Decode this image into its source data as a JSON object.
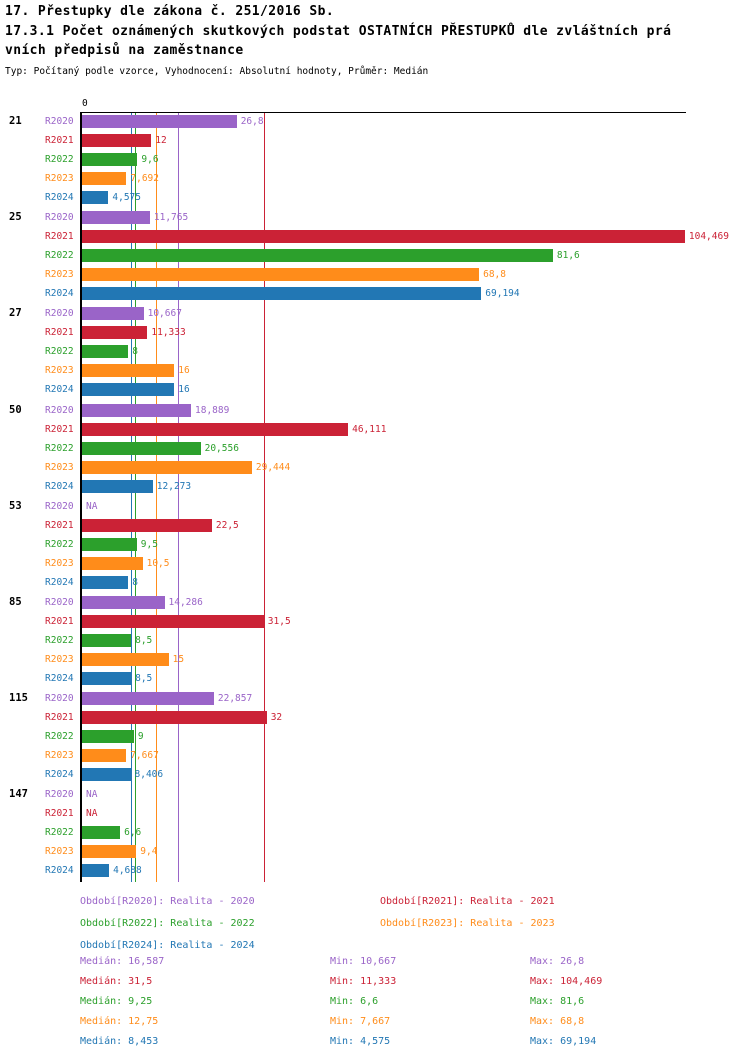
{
  "header": {
    "title": "17. Přestupky dle zákona č. 251/2016 Sb.",
    "subtitle_line1": "17.3.1 Počet oznámených skutkových podstat OSTATNÍCH PŘESTUPKŮ dle zvláštních prá",
    "subtitle_line2": "vních předpisů na zaměstnance",
    "meta": "Typ: Počítaný podle vzorce, Vyhodnocení: Absolutní hodnoty, Průměr: Medián"
  },
  "chart_data": {
    "type": "bar",
    "orientation": "horizontal",
    "value_axis": {
      "zero_label": "0",
      "xlim": [
        0,
        105
      ]
    },
    "series_order": [
      "R2020",
      "R2021",
      "R2022",
      "R2023",
      "R2024"
    ],
    "series_colors": {
      "R2020": "#9a64c8",
      "R2021": "#cb2236",
      "R2022": "#2ca02c",
      "R2023": "#ff8c1a",
      "R2024": "#2277b4"
    },
    "median_lines": [
      {
        "series": "R2020",
        "value": 16.587
      },
      {
        "series": "R2021",
        "value": 31.5
      },
      {
        "series": "R2022",
        "value": 9.25
      },
      {
        "series": "R2023",
        "value": 12.75
      },
      {
        "series": "R2024",
        "value": 8.453
      }
    ],
    "groups": [
      {
        "label": "21",
        "bars": [
          {
            "series": "R2020",
            "value": 26.8,
            "label": "26,8"
          },
          {
            "series": "R2021",
            "value": 12,
            "label": "12"
          },
          {
            "series": "R2022",
            "value": 9.6,
            "label": "9,6"
          },
          {
            "series": "R2023",
            "value": 7.692,
            "label": "7,692"
          },
          {
            "series": "R2024",
            "value": 4.575,
            "label": "4,575"
          }
        ]
      },
      {
        "label": "25",
        "bars": [
          {
            "series": "R2020",
            "value": 11.765,
            "label": "11,765"
          },
          {
            "series": "R2021",
            "value": 104.469,
            "label": "104,469"
          },
          {
            "series": "R2022",
            "value": 81.6,
            "label": "81,6"
          },
          {
            "series": "R2023",
            "value": 68.8,
            "label": "68,8"
          },
          {
            "series": "R2024",
            "value": 69.194,
            "label": "69,194"
          }
        ]
      },
      {
        "label": "27",
        "bars": [
          {
            "series": "R2020",
            "value": 10.667,
            "label": "10,667"
          },
          {
            "series": "R2021",
            "value": 11.333,
            "label": "11,333"
          },
          {
            "series": "R2022",
            "value": 8,
            "label": "8"
          },
          {
            "series": "R2023",
            "value": 16,
            "label": "16"
          },
          {
            "series": "R2024",
            "value": 16,
            "label": "16"
          }
        ]
      },
      {
        "label": "50",
        "bars": [
          {
            "series": "R2020",
            "value": 18.889,
            "label": "18,889"
          },
          {
            "series": "R2021",
            "value": 46.111,
            "label": "46,111"
          },
          {
            "series": "R2022",
            "value": 20.556,
            "label": "20,556"
          },
          {
            "series": "R2023",
            "value": 29.444,
            "label": "29,444"
          },
          {
            "series": "R2024",
            "value": 12.273,
            "label": "12,273"
          }
        ]
      },
      {
        "label": "53",
        "bars": [
          {
            "series": "R2020",
            "value": null,
            "label": "NA"
          },
          {
            "series": "R2021",
            "value": 22.5,
            "label": "22,5"
          },
          {
            "series": "R2022",
            "value": 9.5,
            "label": "9,5"
          },
          {
            "series": "R2023",
            "value": 10.5,
            "label": "10,5"
          },
          {
            "series": "R2024",
            "value": 8,
            "label": "8"
          }
        ]
      },
      {
        "label": "85",
        "bars": [
          {
            "series": "R2020",
            "value": 14.286,
            "label": "14,286"
          },
          {
            "series": "R2021",
            "value": 31.5,
            "label": "31,5"
          },
          {
            "series": "R2022",
            "value": 8.5,
            "label": "8,5"
          },
          {
            "series": "R2023",
            "value": 15,
            "label": "15"
          },
          {
            "series": "R2024",
            "value": 8.5,
            "label": "8,5"
          }
        ]
      },
      {
        "label": "115",
        "bars": [
          {
            "series": "R2020",
            "value": 22.857,
            "label": "22,857"
          },
          {
            "series": "R2021",
            "value": 32,
            "label": "32"
          },
          {
            "series": "R2022",
            "value": 9,
            "label": "9"
          },
          {
            "series": "R2023",
            "value": 7.667,
            "label": "7,667"
          },
          {
            "series": "R2024",
            "value": 8.406,
            "label": "8,406"
          }
        ]
      },
      {
        "label": "147",
        "bars": [
          {
            "series": "R2020",
            "value": null,
            "label": "NA"
          },
          {
            "series": "R2021",
            "value": null,
            "label": "NA"
          },
          {
            "series": "R2022",
            "value": 6.6,
            "label": "6,6"
          },
          {
            "series": "R2023",
            "value": 9.4,
            "label": "9,4"
          },
          {
            "series": "R2024",
            "value": 4.688,
            "label": "4,688"
          }
        ]
      }
    ]
  },
  "legend": {
    "items": [
      {
        "series": "R2020",
        "text": "Období[R2020]: Realita - 2020"
      },
      {
        "series": "R2021",
        "text": "Období[R2021]: Realita - 2021"
      },
      {
        "series": "R2022",
        "text": "Období[R2022]: Realita - 2022"
      },
      {
        "series": "R2023",
        "text": "Období[R2023]: Realita - 2023"
      },
      {
        "series": "R2024",
        "text": "Období[R2024]: Realita - 2024"
      }
    ]
  },
  "stats": {
    "rows": [
      {
        "series": "R2020",
        "median": "Medián: 16,587",
        "min": "Min: 10,667",
        "max": "Max: 26,8"
      },
      {
        "series": "R2021",
        "median": "Medián: 31,5",
        "min": "Min: 11,333",
        "max": "Max: 104,469"
      },
      {
        "series": "R2022",
        "median": "Medián: 9,25",
        "min": "Min: 6,6",
        "max": "Max: 81,6"
      },
      {
        "series": "R2023",
        "median": "Medián: 12,75",
        "min": "Min: 7,667",
        "max": "Max: 68,8"
      },
      {
        "series": "R2024",
        "median": "Medián: 8,453",
        "min": "Min: 4,575",
        "max": "Max: 69,194"
      }
    ]
  }
}
